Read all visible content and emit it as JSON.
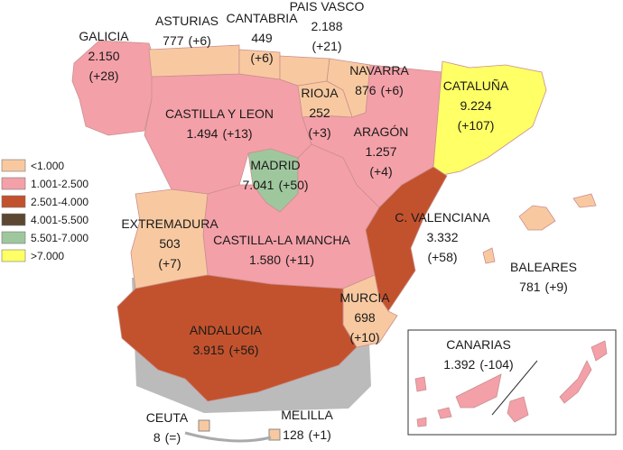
{
  "legend": [
    {
      "label": "<1.000",
      "color": "#f8c9a0"
    },
    {
      "label": "1.001-2.500",
      "color": "#f4a0a8"
    },
    {
      "label": "2.501-4.000",
      "color": "#c2522d"
    },
    {
      "label": "4.001-5.500",
      "color": "#5c4733"
    },
    {
      "label": "5.501-7.000",
      "color": "#9fc79d"
    },
    {
      "label": ">7.000",
      "color": "#ffff66"
    }
  ],
  "regions": [
    {
      "name": "GALICIA",
      "value": "2.150",
      "change": "(+28)"
    },
    {
      "name": "ASTURIAS",
      "value": "777",
      "change": "(+6)"
    },
    {
      "name": "CANTABRIA",
      "value": "449",
      "change": "(+6)"
    },
    {
      "name": "PAIS VASCO",
      "value": "2.188",
      "change": "(+21)"
    },
    {
      "name": "NAVARRA",
      "value": "876",
      "change": "(+6)"
    },
    {
      "name": "RIOJA",
      "value": "252",
      "change": "(+3)"
    },
    {
      "name": "CASTILLA Y LEON",
      "value": "1.494",
      "change": "(+13)"
    },
    {
      "name": "ARAGÓN",
      "value": "1.257",
      "change": "(+4)"
    },
    {
      "name": "CATALUÑA",
      "value": "9.224",
      "change": "(+107)"
    },
    {
      "name": "MADRID",
      "value": "7.041",
      "change": "(+50)"
    },
    {
      "name": "EXTREMADURA",
      "value": "503",
      "change": "(+7)"
    },
    {
      "name": "CASTILLA-LA MANCHA",
      "value": "1.580",
      "change": "(+11)"
    },
    {
      "name": "C. VALENCIANA",
      "value": "3.332",
      "change": "(+58)"
    },
    {
      "name": "BALEARES",
      "value": "781",
      "change": "(+9)"
    },
    {
      "name": "MURCIA",
      "value": "698",
      "change": "(+10)"
    },
    {
      "name": "ANDALUCIA",
      "value": "3.915",
      "change": "(+56)"
    },
    {
      "name": "CANARIAS",
      "value": "1.392",
      "change": "(-104)"
    },
    {
      "name": "CEUTA",
      "value": "8",
      "change": "(=)"
    },
    {
      "name": "MELILLA",
      "value": "128",
      "change": "(+1)"
    }
  ]
}
